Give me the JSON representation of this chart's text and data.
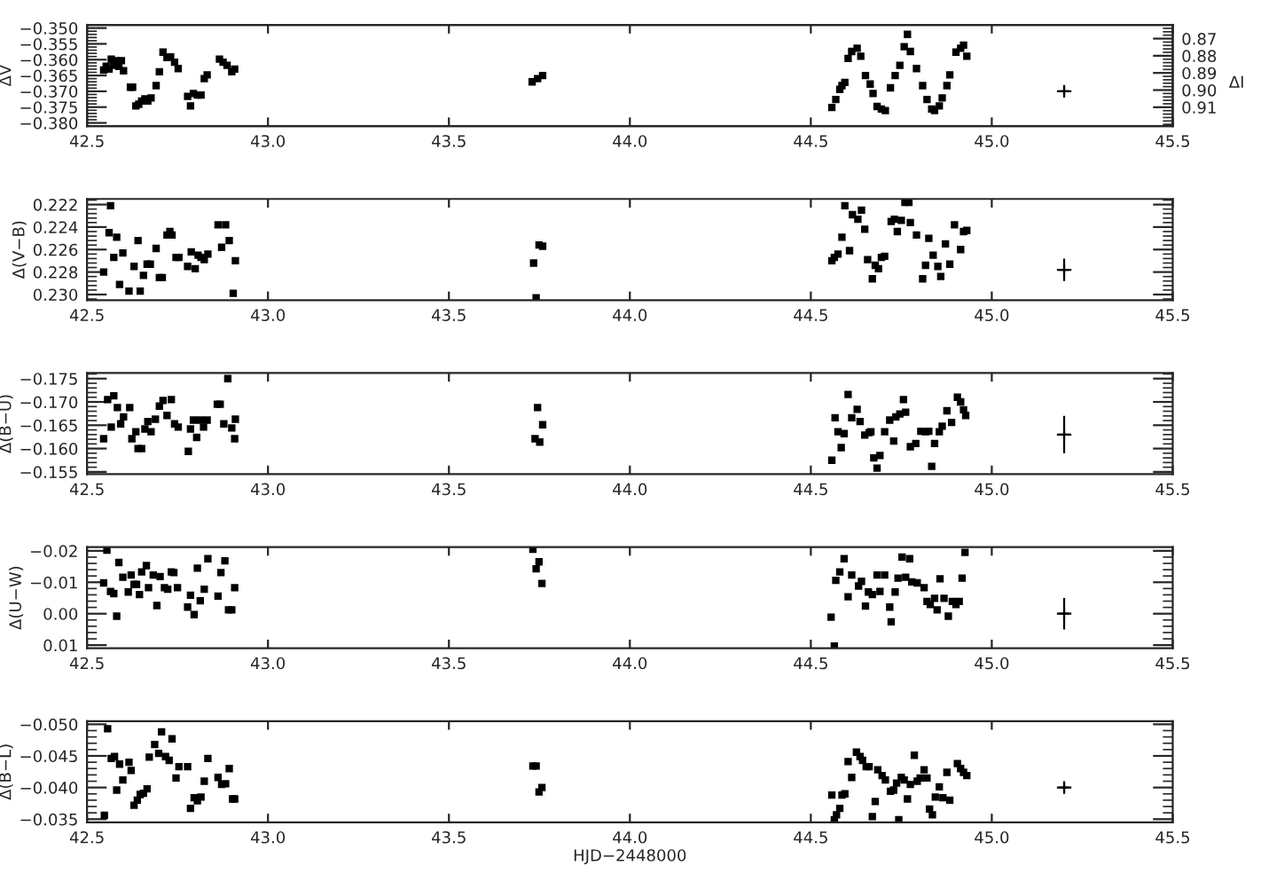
{
  "chart_data": [
    {
      "type": "scatter",
      "ylabel": "ΔV",
      "y2label": "ΔI",
      "xlim": [
        42.5,
        45.5
      ],
      "xticks": [
        {
          "value": 42.5,
          "label": "42.5"
        },
        {
          "value": 43.0,
          "label": "43.0"
        },
        {
          "value": 43.5,
          "label": "43.5"
        },
        {
          "value": 44.0,
          "label": "44.0"
        },
        {
          "value": 44.5,
          "label": "44.5"
        },
        {
          "value": 45.0,
          "label": "45.0"
        },
        {
          "value": 45.5,
          "label": "45.5"
        }
      ],
      "ylim": [
        -0.381,
        -0.349
      ],
      "yticks": [
        {
          "value": -0.35,
          "label": "−0.350"
        },
        {
          "value": -0.355,
          "label": "−0.355"
        },
        {
          "value": -0.36,
          "label": "−0.360"
        },
        {
          "value": -0.365,
          "label": "−0.365"
        },
        {
          "value": -0.37,
          "label": "−0.370"
        },
        {
          "value": -0.375,
          "label": "−0.375"
        },
        {
          "value": -0.38,
          "label": "−0.380"
        }
      ],
      "y2lim": [
        0.921,
        0.862
      ],
      "y2ticks": [
        {
          "value": 0.87,
          "label": "0.87"
        },
        {
          "value": 0.88,
          "label": "0.88"
        },
        {
          "value": 0.89,
          "label": "0.89"
        },
        {
          "value": 0.9,
          "label": "0.90"
        },
        {
          "value": 0.91,
          "label": "0.91"
        }
      ],
      "series": [
        {
          "color": "#000000",
          "marker": "square",
          "x": [
            42.546,
            42.553,
            42.561,
            42.567,
            42.574,
            42.58,
            42.588,
            42.595,
            42.601,
            42.62,
            42.626,
            42.635,
            42.643,
            42.651,
            42.66,
            42.668,
            42.677,
            42.691,
            42.7,
            42.71,
            42.721,
            42.731,
            42.742,
            42.752,
            42.778,
            42.786,
            42.794,
            42.805,
            42.815,
            42.824,
            42.832,
            42.866,
            42.876,
            42.887,
            42.9,
            42.908,
            43.73,
            43.745,
            43.759,
            44.558,
            44.569,
            44.58,
            44.586,
            44.594,
            44.603,
            44.613,
            44.628,
            44.638,
            44.651,
            44.664,
            44.672,
            44.683,
            44.695,
            44.706,
            44.72,
            44.733,
            44.746,
            44.758,
            44.767,
            44.775,
            44.792,
            44.809,
            44.821,
            44.834,
            44.842,
            44.855,
            44.863,
            44.876,
            44.884,
            44.901,
            44.914,
            44.922,
            44.931
          ],
          "values": [
            -0.3633,
            -0.3621,
            -0.363,
            -0.3598,
            -0.3618,
            -0.3603,
            -0.3621,
            -0.3603,
            -0.3635,
            -0.3687,
            -0.3687,
            -0.3746,
            -0.3741,
            -0.3731,
            -0.3724,
            -0.3731,
            -0.3721,
            -0.3682,
            -0.3638,
            -0.3576,
            -0.3593,
            -0.3591,
            -0.3608,
            -0.3628,
            -0.3716,
            -0.3746,
            -0.3707,
            -0.3712,
            -0.3712,
            -0.366,
            -0.3648,
            -0.3598,
            -0.3608,
            -0.3618,
            -0.3638,
            -0.363,
            -0.367,
            -0.366,
            -0.365,
            -0.3751,
            -0.3726,
            -0.3694,
            -0.3682,
            -0.3672,
            -0.3596,
            -0.3574,
            -0.3564,
            -0.3589,
            -0.365,
            -0.3677,
            -0.3707,
            -0.3748,
            -0.3756,
            -0.3761,
            -0.3689,
            -0.365,
            -0.3618,
            -0.3559,
            -0.352,
            -0.3574,
            -0.3628,
            -0.3682,
            -0.3726,
            -0.3756,
            -0.3761,
            -0.3746,
            -0.3721,
            -0.3682,
            -0.3648,
            -0.3576,
            -0.3564,
            -0.3554,
            -0.3589
          ]
        },
        {
          "color": "#000000",
          "marker": "cross",
          "x": [
            45.2
          ],
          "values": [
            -0.37
          ],
          "errors": [
            0.002
          ],
          "xerrors": [
            0.02
          ]
        }
      ]
    },
    {
      "type": "scatter",
      "ylabel": "Δ(V−B)",
      "xlim": [
        42.5,
        45.5
      ],
      "xticks": [
        {
          "value": 42.5,
          "label": "42.5"
        },
        {
          "value": 43.0,
          "label": "43.0"
        },
        {
          "value": 43.5,
          "label": "43.5"
        },
        {
          "value": 44.0,
          "label": "44.0"
        },
        {
          "value": 44.5,
          "label": "44.5"
        },
        {
          "value": 45.0,
          "label": "45.0"
        },
        {
          "value": 45.5,
          "label": "45.5"
        }
      ],
      "ylim": [
        0.2305,
        0.2215
      ],
      "yticks": [
        {
          "value": 0.222,
          "label": "0.222"
        },
        {
          "value": 0.224,
          "label": "0.224"
        },
        {
          "value": 0.226,
          "label": "0.226"
        },
        {
          "value": 0.228,
          "label": "0.228"
        },
        {
          "value": 0.23,
          "label": "0.230"
        }
      ],
      "series": [
        {
          "color": "#000000",
          "marker": "square",
          "x": [
            42.546,
            42.561,
            42.565,
            42.574,
            42.582,
            42.59,
            42.599,
            42.616,
            42.63,
            42.641,
            42.647,
            42.656,
            42.666,
            42.675,
            42.691,
            42.7,
            42.708,
            42.721,
            42.729,
            42.735,
            42.746,
            42.754,
            42.778,
            42.788,
            42.799,
            42.807,
            42.815,
            42.824,
            42.834,
            42.862,
            42.872,
            42.883,
            42.893,
            42.904,
            42.91,
            43.734,
            43.741,
            43.749,
            43.759,
            44.558,
            44.565,
            44.575,
            44.586,
            44.594,
            44.607,
            44.615,
            44.63,
            44.64,
            44.649,
            44.657,
            44.67,
            44.678,
            44.687,
            44.695,
            44.704,
            44.722,
            44.731,
            44.739,
            44.75,
            44.76,
            44.771,
            44.775,
            44.792,
            44.809,
            44.817,
            44.826,
            44.838,
            44.851,
            44.859,
            44.872,
            44.884,
            44.897,
            44.914,
            44.922,
            44.931
          ],
          "values": [
            0.228,
            0.2245,
            0.2221,
            0.2267,
            0.2249,
            0.2291,
            0.2263,
            0.2297,
            0.2275,
            0.2252,
            0.2297,
            0.2283,
            0.2273,
            0.2273,
            0.2259,
            0.2285,
            0.2285,
            0.2247,
            0.2244,
            0.2247,
            0.2267,
            0.2267,
            0.2275,
            0.2262,
            0.2277,
            0.2265,
            0.2267,
            0.2269,
            0.2264,
            0.2238,
            0.2258,
            0.2238,
            0.2252,
            0.2299,
            0.227,
            0.2272,
            0.2303,
            0.2256,
            0.2257,
            0.227,
            0.2267,
            0.2264,
            0.2249,
            0.2221,
            0.2261,
            0.2229,
            0.2233,
            0.2225,
            0.2242,
            0.2269,
            0.2286,
            0.2274,
            0.2277,
            0.2267,
            0.2266,
            0.2235,
            0.2233,
            0.2244,
            0.2234,
            0.2218,
            0.2218,
            0.2236,
            0.2247,
            0.2286,
            0.2274,
            0.225,
            0.2265,
            0.2275,
            0.2284,
            0.2255,
            0.2273,
            0.2238,
            0.226,
            0.2244,
            0.2243
          ]
        },
        {
          "color": "#000000",
          "marker": "cross",
          "x": [
            45.2
          ],
          "values": [
            0.2278
          ],
          "errors": [
            0.001
          ],
          "xerrors": [
            0.02
          ]
        }
      ]
    },
    {
      "type": "scatter",
      "ylabel": "Δ(B−U)",
      "xlim": [
        42.5,
        45.5
      ],
      "xticks": [
        {
          "value": 42.5,
          "label": "42.5"
        },
        {
          "value": 43.0,
          "label": "43.0"
        },
        {
          "value": 43.5,
          "label": "43.5"
        },
        {
          "value": 44.0,
          "label": "44.0"
        },
        {
          "value": 44.5,
          "label": "44.5"
        },
        {
          "value": 45.0,
          "label": "45.0"
        },
        {
          "value": 45.5,
          "label": "45.5"
        }
      ],
      "ylim": [
        -0.1545,
        -0.1762
      ],
      "yticks": [
        {
          "value": -0.175,
          "label": "−0.175"
        },
        {
          "value": -0.17,
          "label": "−0.170"
        },
        {
          "value": -0.165,
          "label": "−0.165"
        },
        {
          "value": -0.16,
          "label": "−0.160"
        },
        {
          "value": -0.155,
          "label": "−0.155"
        }
      ],
      "series": [
        {
          "color": "#000000",
          "marker": "square",
          "x": [
            42.546,
            42.557,
            42.567,
            42.574,
            42.584,
            42.593,
            42.601,
            42.618,
            42.624,
            42.635,
            42.641,
            42.651,
            42.66,
            42.668,
            42.677,
            42.689,
            42.7,
            42.71,
            42.721,
            42.733,
            42.742,
            42.752,
            42.78,
            42.786,
            42.794,
            42.803,
            42.813,
            42.822,
            42.832,
            42.86,
            42.868,
            42.878,
            42.889,
            42.9,
            42.908,
            42.91,
            43.738,
            43.745,
            43.751,
            43.759,
            44.558,
            44.567,
            44.575,
            44.584,
            44.592,
            44.603,
            44.613,
            44.628,
            44.636,
            44.649,
            44.661,
            44.666,
            44.674,
            44.683,
            44.691,
            44.704,
            44.718,
            44.729,
            44.735,
            44.746,
            44.756,
            44.762,
            44.775,
            44.79,
            44.804,
            44.817,
            44.826,
            44.834,
            44.842,
            44.855,
            44.863,
            44.876,
            44.889,
            44.905,
            44.914,
            44.922,
            44.928
          ],
          "values": [
            -0.1621,
            -0.1705,
            -0.1646,
            -0.1713,
            -0.1688,
            -0.1653,
            -0.1668,
            -0.1688,
            -0.1621,
            -0.1636,
            -0.16,
            -0.16,
            -0.1642,
            -0.1658,
            -0.1636,
            -0.1663,
            -0.1691,
            -0.1703,
            -0.1671,
            -0.1705,
            -0.1653,
            -0.1646,
            -0.1594,
            -0.1642,
            -0.1661,
            -0.1624,
            -0.1661,
            -0.1646,
            -0.1661,
            -0.1695,
            -0.1695,
            -0.1653,
            -0.175,
            -0.1644,
            -0.1621,
            -0.1663,
            -0.1621,
            -0.1688,
            -0.1614,
            -0.1651,
            -0.1575,
            -0.1666,
            -0.1636,
            -0.1602,
            -0.1632,
            -0.1716,
            -0.1666,
            -0.1684,
            -0.1658,
            -0.1629,
            -0.1634,
            -0.1636,
            -0.158,
            -0.1558,
            -0.1585,
            -0.1636,
            -0.1661,
            -0.1616,
            -0.1668,
            -0.1674,
            -0.1705,
            -0.1678,
            -0.1604,
            -0.1611,
            -0.1637,
            -0.1636,
            -0.1637,
            -0.1562,
            -0.1611,
            -0.1636,
            -0.1648,
            -0.1681,
            -0.1656,
            -0.171,
            -0.17,
            -0.1683,
            -0.1671
          ]
        },
        {
          "color": "#000000",
          "marker": "cross",
          "x": [
            45.2
          ],
          "values": [
            -0.163
          ],
          "errors": [
            0.004
          ],
          "xerrors": [
            0.02
          ]
        }
      ]
    },
    {
      "type": "scatter",
      "ylabel": "Δ(U−W)",
      "xlim": [
        42.5,
        45.5
      ],
      "xticks": [
        {
          "value": 42.5,
          "label": "42.5"
        },
        {
          "value": 43.0,
          "label": "43.0"
        },
        {
          "value": 43.5,
          "label": "43.5"
        },
        {
          "value": 44.0,
          "label": "44.0"
        },
        {
          "value": 44.5,
          "label": "44.5"
        },
        {
          "value": 45.0,
          "label": "45.0"
        },
        {
          "value": 45.5,
          "label": "45.5"
        }
      ],
      "ylim": [
        0.011,
        -0.0212
      ],
      "yticks": [
        {
          "value": -0.02,
          "label": "−0.02"
        },
        {
          "value": -0.01,
          "label": "−0.01"
        },
        {
          "value": 0.0,
          "label": "0.00"
        },
        {
          "value": 0.01,
          "label": "0.01"
        }
      ],
      "series": [
        {
          "color": "#000000",
          "marker": "square",
          "x": [
            42.546,
            42.555,
            42.565,
            42.574,
            42.582,
            42.588,
            42.599,
            42.614,
            42.622,
            42.63,
            42.637,
            42.645,
            42.651,
            42.664,
            42.67,
            42.683,
            42.693,
            42.702,
            42.714,
            42.723,
            42.733,
            42.74,
            42.75,
            42.778,
            42.786,
            42.796,
            42.805,
            42.813,
            42.824,
            42.834,
            42.862,
            42.87,
            42.881,
            42.891,
            42.9,
            42.908,
            43.732,
            43.741,
            43.749,
            43.757,
            44.556,
            44.565,
            44.569,
            44.58,
            44.592,
            44.603,
            44.613,
            44.632,
            44.64,
            44.651,
            44.659,
            44.67,
            44.683,
            44.691,
            44.704,
            44.718,
            44.722,
            44.733,
            44.741,
            44.752,
            44.762,
            44.773,
            44.779,
            44.794,
            44.813,
            44.821,
            44.83,
            44.842,
            44.849,
            44.857,
            44.868,
            44.88,
            44.891,
            44.901,
            44.91,
            44.918,
            44.926
          ],
          "values": [
            -0.0098,
            -0.0202,
            -0.0071,
            -0.0064,
            0.0008,
            -0.0163,
            -0.0116,
            -0.0069,
            -0.0123,
            -0.0093,
            -0.0093,
            -0.0061,
            -0.0133,
            -0.0153,
            -0.0083,
            -0.0123,
            -0.0026,
            -0.0118,
            -0.0083,
            -0.0078,
            -0.0133,
            -0.0131,
            -0.0083,
            -0.0021,
            -0.0059,
            0.0003,
            -0.0145,
            -0.0041,
            -0.0078,
            -0.0175,
            -0.0056,
            -0.0131,
            -0.0168,
            -0.0012,
            -0.0012,
            -0.0083,
            -0.0205,
            -0.0143,
            -0.0165,
            -0.0096,
            0.0011,
            0.0103,
            -0.0106,
            -0.0133,
            -0.0175,
            -0.0054,
            -0.0123,
            -0.0088,
            -0.0103,
            -0.0024,
            -0.0069,
            -0.0061,
            -0.0123,
            -0.0071,
            -0.0123,
            -0.0021,
            0.0026,
            -0.0069,
            -0.0113,
            -0.018,
            -0.0116,
            -0.0175,
            -0.0101,
            -0.0098,
            -0.0083,
            -0.0039,
            -0.0029,
            -0.0049,
            -0.0012,
            -0.0111,
            -0.0049,
            0.0008,
            -0.0039,
            -0.0029,
            -0.0039,
            -0.0113,
            -0.0195
          ]
        },
        {
          "color": "#000000",
          "marker": "cross",
          "x": [
            45.2
          ],
          "values": [
            0.0
          ],
          "errors": [
            0.005
          ],
          "xerrors": [
            0.02
          ]
        }
      ]
    },
    {
      "type": "scatter",
      "ylabel": "Δ(B−L)",
      "xlabel": "HJD−2448000",
      "xlim": [
        42.5,
        45.5
      ],
      "xticks": [
        {
          "value": 42.5,
          "label": "42.5"
        },
        {
          "value": 43.0,
          "label": "43.0"
        },
        {
          "value": 43.5,
          "label": "43.5"
        },
        {
          "value": 44.0,
          "label": "44.0"
        },
        {
          "value": 44.5,
          "label": "44.5"
        },
        {
          "value": 45.0,
          "label": "45.0"
        },
        {
          "value": 45.5,
          "label": "45.5"
        }
      ],
      "ylim": [
        -0.0345,
        -0.0505
      ],
      "yticks": [
        {
          "value": -0.05,
          "label": "−0.050"
        },
        {
          "value": -0.045,
          "label": "−0.045"
        },
        {
          "value": -0.04,
          "label": "−0.040"
        },
        {
          "value": -0.035,
          "label": "−0.035"
        }
      ],
      "series": [
        {
          "color": "#000000",
          "marker": "square",
          "x": [
            42.548,
            42.557,
            42.567,
            42.576,
            42.582,
            42.59,
            42.599,
            42.616,
            42.622,
            42.63,
            42.639,
            42.647,
            42.656,
            42.666,
            42.672,
            42.687,
            42.698,
            42.706,
            42.717,
            42.727,
            42.735,
            42.746,
            42.754,
            42.778,
            42.786,
            42.796,
            42.805,
            42.815,
            42.824,
            42.834,
            42.862,
            42.872,
            42.883,
            42.893,
            42.902,
            42.908,
            43.732,
            43.741,
            43.749,
            43.757,
            44.558,
            44.565,
            44.571,
            44.58,
            44.586,
            44.594,
            44.603,
            44.613,
            44.626,
            44.636,
            44.643,
            44.653,
            44.661,
            44.67,
            44.678,
            44.685,
            44.697,
            44.706,
            44.72,
            44.729,
            44.737,
            44.743,
            44.75,
            44.758,
            44.767,
            44.775,
            44.786,
            44.794,
            44.802,
            44.813,
            44.821,
            44.828,
            44.836,
            44.844,
            44.855,
            44.865,
            44.876,
            44.884,
            44.905,
            44.914,
            44.922,
            44.931
          ],
          "values": [
            -0.0356,
            -0.0493,
            -0.0446,
            -0.0449,
            -0.0396,
            -0.0437,
            -0.0412,
            -0.044,
            -0.0427,
            -0.0372,
            -0.038,
            -0.0389,
            -0.0391,
            -0.0398,
            -0.0448,
            -0.0468,
            -0.0454,
            -0.0488,
            -0.0449,
            -0.0443,
            -0.0477,
            -0.0415,
            -0.0433,
            -0.0433,
            -0.0367,
            -0.0384,
            -0.0379,
            -0.0385,
            -0.041,
            -0.0446,
            -0.0416,
            -0.0405,
            -0.0406,
            -0.043,
            -0.0382,
            -0.0382,
            -0.0434,
            -0.0434,
            -0.0393,
            -0.04,
            -0.0388,
            -0.0349,
            -0.0357,
            -0.0367,
            -0.0388,
            -0.039,
            -0.0441,
            -0.0416,
            -0.0456,
            -0.0449,
            -0.0443,
            -0.0433,
            -0.0433,
            -0.0354,
            -0.0378,
            -0.0428,
            -0.0419,
            -0.0412,
            -0.0394,
            -0.0396,
            -0.0407,
            -0.0349,
            -0.0416,
            -0.0412,
            -0.0382,
            -0.0405,
            -0.0451,
            -0.041,
            -0.0415,
            -0.0428,
            -0.0415,
            -0.0366,
            -0.0357,
            -0.0385,
            -0.0401,
            -0.0384,
            -0.0424,
            -0.038,
            -0.0438,
            -0.043,
            -0.0424,
            -0.0419
          ]
        },
        {
          "color": "#000000",
          "marker": "cross",
          "x": [
            45.2
          ],
          "values": [
            -0.04
          ],
          "errors": [
            0.001
          ],
          "xerrors": [
            0.02
          ]
        }
      ]
    }
  ]
}
